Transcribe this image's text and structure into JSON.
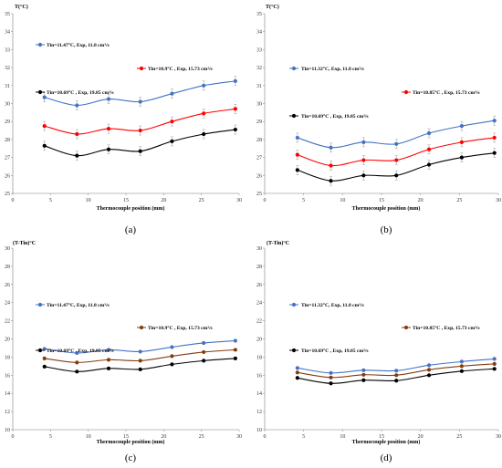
{
  "chart_data": [
    {
      "panel_label": "(a)",
      "type": "line",
      "ylabel": "T(°C)",
      "xlabel": "Thermocouple position (mm)",
      "xlim": [
        0,
        30
      ],
      "ylim": [
        25,
        35
      ],
      "xticks": [
        0,
        5,
        10,
        15,
        20,
        25,
        30
      ],
      "yticks": [
        25,
        26,
        27,
        28,
        29,
        30,
        31,
        32,
        33,
        34,
        35
      ],
      "x": [
        4.2,
        8.5,
        12.7,
        16.9,
        21.1,
        25.3,
        29.5
      ],
      "series": [
        {
          "name": "Tin=11.47°C, Exp, 11.8 cm³/s",
          "color": "#4472C4",
          "values": [
            30.35,
            29.9,
            30.25,
            30.1,
            30.55,
            31.0,
            31.25
          ]
        },
        {
          "name": "Tin=10.9°C , Exp, 15.73 cm³/s",
          "color": "#FF0000",
          "values": [
            28.75,
            28.3,
            28.6,
            28.5,
            29.0,
            29.45,
            29.7
          ]
        },
        {
          "name": "Tin=10.69°C , Exp, 19.85 cm³/s",
          "color": "#000000",
          "values": [
            27.65,
            27.1,
            27.45,
            27.35,
            27.9,
            28.3,
            28.55
          ]
        }
      ]
    },
    {
      "panel_label": "(b)",
      "type": "line",
      "ylabel": "T(°C)",
      "xlabel": "Thermocouple position (mm)",
      "xlim": [
        0,
        30
      ],
      "ylim": [
        25,
        35
      ],
      "xticks": [
        0,
        5,
        10,
        15,
        20,
        25,
        30
      ],
      "yticks": [
        25,
        26,
        27,
        28,
        29,
        30,
        31,
        32,
        33,
        34,
        35
      ],
      "x": [
        4.2,
        8.5,
        12.7,
        16.9,
        21.1,
        25.3,
        29.5
      ],
      "series": [
        {
          "name": "Tin=11.32°C, Exp, 11.8 cm³/s",
          "color": "#4472C4",
          "values": [
            28.1,
            27.55,
            27.85,
            27.75,
            28.35,
            28.75,
            29.05
          ]
        },
        {
          "name": "Tin=10.85°C , Exp, 15.73 cm³/s",
          "color": "#FF0000",
          "values": [
            27.15,
            26.55,
            26.85,
            26.85,
            27.45,
            27.85,
            28.1
          ]
        },
        {
          "name": "Tin=10.69°C , Exp, 19.85 cm³/s",
          "color": "#000000",
          "values": [
            26.3,
            25.7,
            26.0,
            26.0,
            26.6,
            27.0,
            27.25
          ]
        }
      ]
    },
    {
      "panel_label": "(c)",
      "type": "line",
      "ylabel": "(T-Tin)°C",
      "xlabel": "Thermocouple position (mm)",
      "xlim": [
        0,
        30
      ],
      "ylim": [
        10,
        30
      ],
      "xticks": [
        0,
        5,
        10,
        15,
        20,
        25,
        30
      ],
      "yticks": [
        10,
        12,
        14,
        16,
        18,
        20,
        22,
        24,
        26,
        28,
        30
      ],
      "x": [
        4.2,
        8.5,
        12.7,
        16.9,
        21.1,
        25.3,
        29.5
      ],
      "series": [
        {
          "name": "Tin=11.47°C, Exp, 11.8 cm³/s",
          "color": "#4472C4",
          "values": [
            18.9,
            18.45,
            18.8,
            18.6,
            19.1,
            19.55,
            19.8
          ]
        },
        {
          "name": "Tin=10.9°C , Exp, 15.73 cm³/s",
          "color": "#843C0C",
          "values": [
            17.85,
            17.4,
            17.7,
            17.6,
            18.1,
            18.55,
            18.8
          ]
        },
        {
          "name": "Tin=10.69°C , Exp, 19.85 cm³/s",
          "color": "#000000",
          "values": [
            16.95,
            16.4,
            16.75,
            16.65,
            17.2,
            17.6,
            17.85
          ]
        }
      ]
    },
    {
      "panel_label": "(d)",
      "type": "line",
      "ylabel": "(T-Tin)°C",
      "xlabel": "Thermocouple position (mm)",
      "xlim": [
        0,
        30
      ],
      "ylim": [
        10,
        30
      ],
      "xticks": [
        0,
        5,
        10,
        15,
        20,
        25,
        30
      ],
      "yticks": [
        10,
        12,
        14,
        16,
        18,
        20,
        22,
        24,
        26,
        28,
        30
      ],
      "x": [
        4.2,
        8.5,
        12.7,
        16.9,
        21.1,
        25.3,
        29.5
      ],
      "series": [
        {
          "name": "Tin=11.32°C, Exp, 11.8 cm³/s",
          "color": "#4472C4",
          "values": [
            16.8,
            16.25,
            16.55,
            16.5,
            17.1,
            17.5,
            17.8
          ]
        },
        {
          "name": "Tin=10.85°C , Exp, 15.73 cm³/s",
          "color": "#843C0C",
          "values": [
            16.3,
            15.75,
            16.05,
            16.0,
            16.6,
            17.0,
            17.25
          ]
        },
        {
          "name": "Tin=10.69°C , Exp, 19.85 cm³/s",
          "color": "#000000",
          "values": [
            15.7,
            15.1,
            15.45,
            15.4,
            16.0,
            16.45,
            16.7
          ]
        }
      ]
    }
  ]
}
